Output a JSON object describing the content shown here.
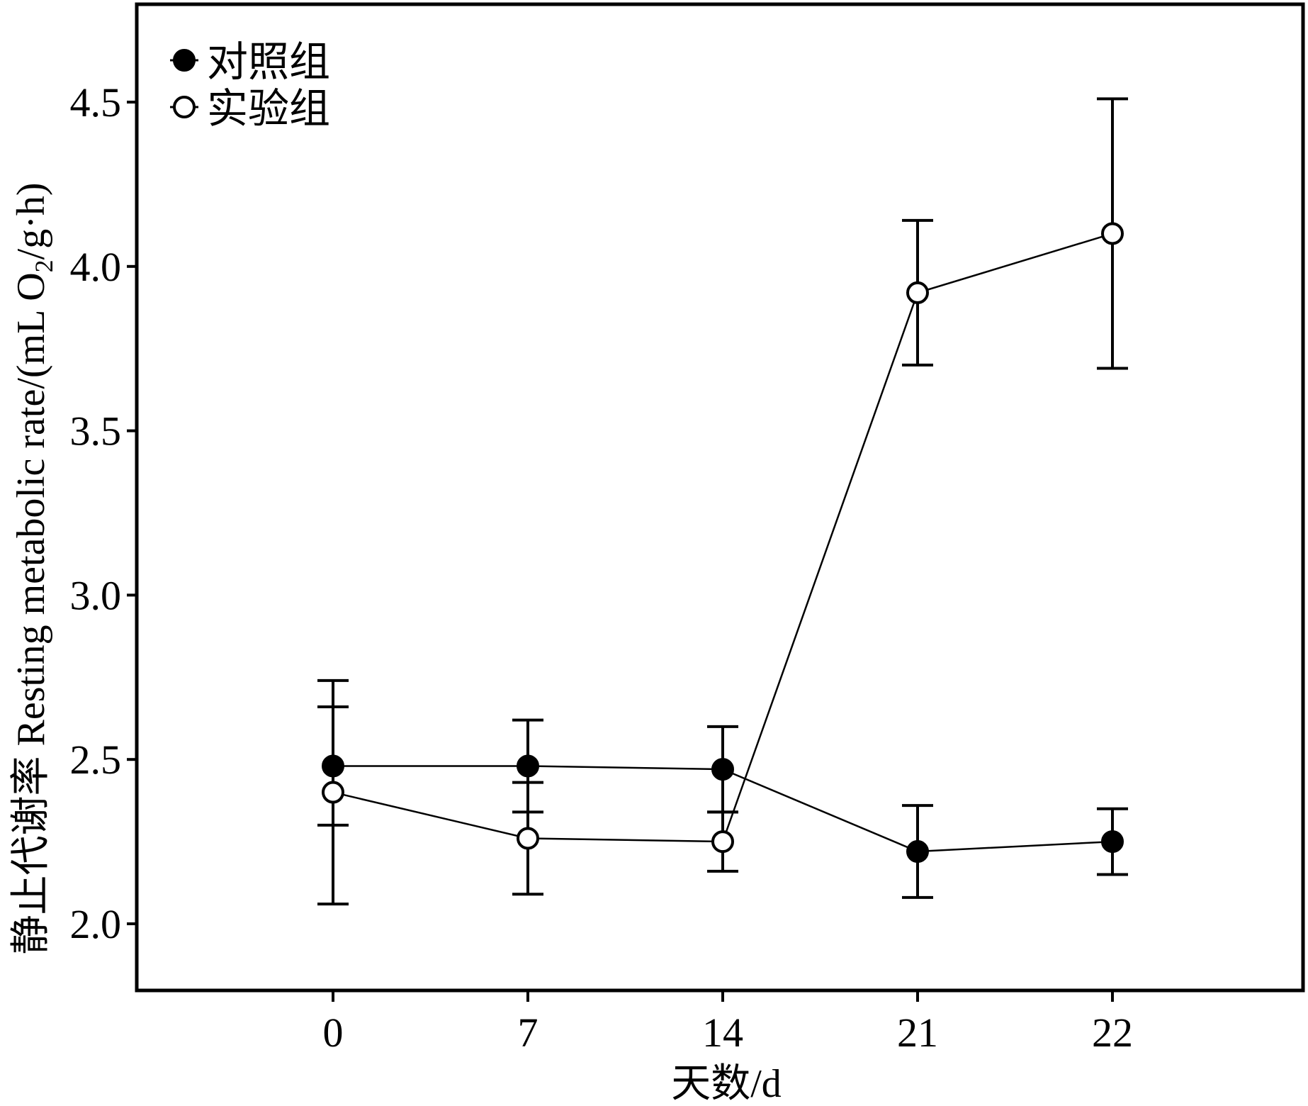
{
  "chart_data": {
    "type": "line",
    "title": "",
    "xlabel": "天数/d",
    "ylabel": "静止代谢率 Resting metabolic rate/(mL O2/g·h)",
    "ylabel_parts": {
      "before_sub": "静止代谢率 Resting metabolic rate/(mL O",
      "subscript": "2",
      "after_sub": "/g·h)"
    },
    "categories": [
      "0",
      "7",
      "14",
      "21",
      "22"
    ],
    "ylim": [
      1.8,
      4.8
    ],
    "yticks": [
      "2.0",
      "2.5",
      "3.0",
      "3.5",
      "4.0",
      "4.5"
    ],
    "ytick_values": [
      2.0,
      2.5,
      3.0,
      3.5,
      4.0,
      4.5
    ],
    "grid": false,
    "legend_position": "top-left",
    "series": [
      {
        "name": "对照组",
        "marker": "filled-circle",
        "values": [
          2.48,
          2.48,
          2.47,
          2.22,
          2.25
        ],
        "error_low": [
          2.3,
          2.34,
          2.34,
          2.08,
          2.15
        ],
        "error_high": [
          2.66,
          2.62,
          2.6,
          2.36,
          2.35
        ]
      },
      {
        "name": "实验组",
        "marker": "open-circle",
        "values": [
          2.4,
          2.26,
          2.25,
          3.92,
          4.1
        ],
        "error_low": [
          2.06,
          2.09,
          2.16,
          3.7,
          3.69
        ],
        "error_high": [
          2.74,
          2.43,
          2.34,
          4.14,
          4.51
        ]
      }
    ],
    "colors": {
      "line": "#000000",
      "marker_fill_open": "#ffffff",
      "marker_fill_closed": "#000000"
    }
  }
}
